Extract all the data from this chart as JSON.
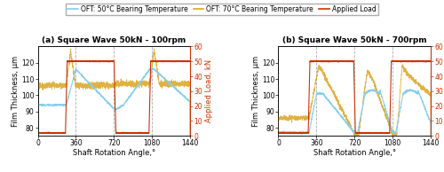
{
  "title_a": "(a) Square Wave 50kN - 100rpm",
  "title_b": "(b) Square Wave 50kN - 700rpm",
  "xlabel": "Shaft Rotation Angle,°",
  "ylabel_left": "Film Thickness, μm",
  "ylabel_right": "Applied Load, kN",
  "xlim": [
    0,
    1440
  ],
  "ylim_left": [
    75,
    130
  ],
  "ylim_right": [
    0,
    60
  ],
  "xticks": [
    0,
    360,
    720,
    1080,
    1440
  ],
  "yticks_left": [
    80,
    90,
    100,
    110,
    120
  ],
  "yticks_right": [
    0,
    10,
    20,
    30,
    40,
    50,
    60
  ],
  "color_50c": "#87CEEB",
  "color_70c": "#DAA520",
  "color_load": "#CC3300",
  "legend_labels": [
    "OFT: 50°C Bearing Temperature",
    "OFT: 70°C Bearing Temperature",
    "Applied Load"
  ],
  "vline_color": "#aaaaaa",
  "vlines": [
    360,
    720,
    1080
  ],
  "load_low": 2,
  "load_high": 50,
  "load_transition": 10
}
